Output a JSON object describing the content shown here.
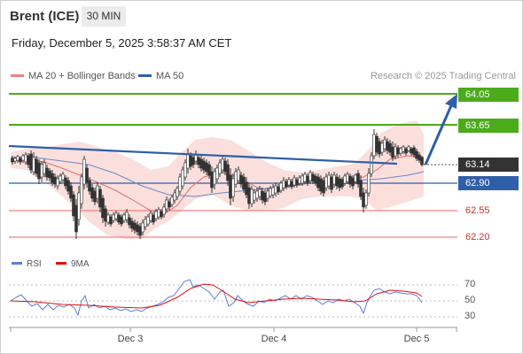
{
  "header": {
    "instrument": "Brent (ICE)",
    "timeframe": "30 MIN",
    "datetime": "Friday, December 5, 2025 3:58:37 AM CET"
  },
  "legend": {
    "ma20_label": "MA 20 + Bollinger Bands",
    "ma20_color": "#f08080",
    "ma50_label": "MA 50",
    "ma50_color": "#2f5fa8",
    "credit": "Research © 2025 Trading Central"
  },
  "levels": {
    "r2": "64.05",
    "r1": "63.65",
    "last": "63.14",
    "pivot": "62.90",
    "s1": "62.55",
    "s2": "62.20"
  },
  "rsi": {
    "rsi_label": "RSI",
    "rsi_color": "#5b7fd6",
    "ma_label": "9MA",
    "ma_color": "#e01010",
    "ticks": [
      "70",
      "50",
      "30"
    ]
  },
  "x_axis": {
    "labels": [
      "Dec 3",
      "Dec 4",
      "Dec 5"
    ]
  },
  "chart_data": {
    "type": "candlestick",
    "y_unit": "USD",
    "price_levels": [
      64.05,
      63.65,
      63.14,
      62.9,
      62.55,
      62.2
    ],
    "rsi_levels": [
      70,
      50,
      30
    ],
    "x_labels": [
      "Dec 3",
      "Dec 4",
      "Dec 5"
    ]
  }
}
